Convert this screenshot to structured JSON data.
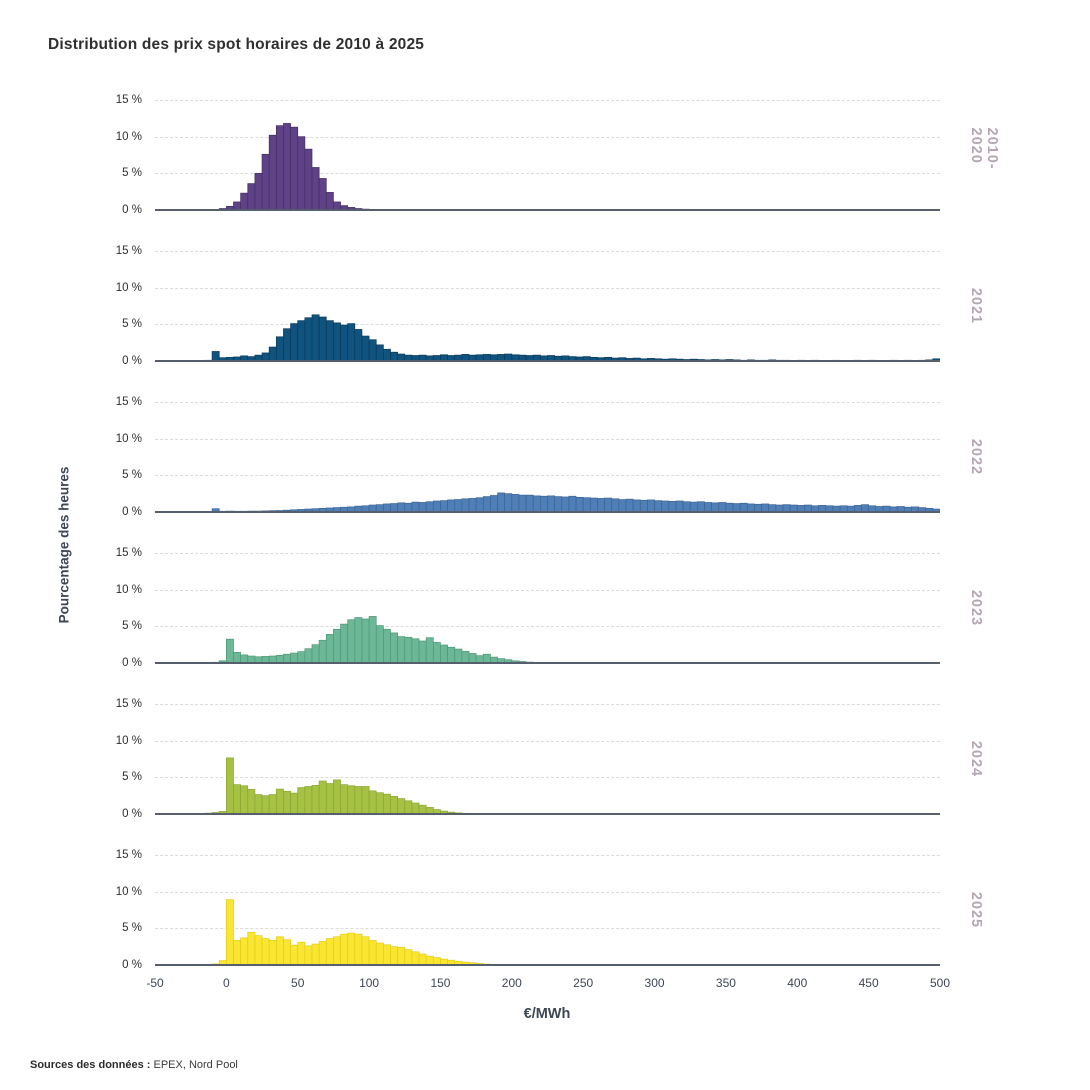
{
  "title": "Distribution des prix spot horaires de 2010 à 2025",
  "y_axis": {
    "title": "Pourcentage des heures",
    "tick_values": [
      15,
      10,
      5,
      0
    ],
    "tick_labels": [
      "15 %",
      "10 %",
      "5 %",
      "0 %"
    ]
  },
  "x_axis": {
    "title": "€/MWh",
    "tick_values": [
      -50,
      0,
      50,
      100,
      150,
      200,
      250,
      300,
      350,
      400,
      450,
      500
    ],
    "tick_labels": [
      "-50",
      "0",
      "50",
      "100",
      "150",
      "200",
      "250",
      "300",
      "350",
      "400",
      "450",
      "500"
    ]
  },
  "footer": {
    "label": "Sources des données :",
    "value": "EPEX, Nord Pool"
  },
  "chart_data": {
    "type": "bar",
    "subtype": "faceted-histogram",
    "title": "Distribution des prix spot horaires de 2010 à 2025",
    "xlabel": "€/MWh",
    "ylabel": "Pourcentage des heures",
    "x_range": [
      -50,
      500
    ],
    "y_range": [
      0,
      15
    ],
    "grid": "dashed-horizontal",
    "legend_position": "right-rotated-facet-labels",
    "year_label_color": "#b4a6b2",
    "bin_width": 5,
    "panels": [
      {
        "label": "2010-2020",
        "color": "#5e4187",
        "border": "#44305f",
        "bins_start": -10,
        "values": [
          0.05,
          0.2,
          0.5,
          1.1,
          2.3,
          3.6,
          5.0,
          7.6,
          10.2,
          11.5,
          11.8,
          11.3,
          10.0,
          8.3,
          5.8,
          4.3,
          2.4,
          1.1,
          0.6,
          0.35,
          0.2,
          0.12,
          0.08,
          0.05,
          0.04
        ]
      },
      {
        "label": "2021",
        "color": "#10537f",
        "border": "#0b3a59",
        "bins_start": -15,
        "values": [
          0.1,
          1.3,
          0.45,
          0.5,
          0.55,
          0.7,
          0.6,
          0.8,
          1.1,
          1.9,
          3.3,
          4.4,
          5.1,
          5.5,
          5.9,
          6.3,
          6.0,
          5.5,
          5.2,
          4.9,
          5.1,
          4.3,
          3.4,
          2.9,
          2.2,
          1.6,
          1.2,
          0.95,
          0.8,
          0.75,
          0.8,
          0.7,
          0.75,
          0.85,
          0.75,
          0.8,
          0.9,
          0.8,
          0.85,
          0.9,
          0.85,
          0.9,
          0.95,
          0.85,
          0.8,
          0.75,
          0.8,
          0.7,
          0.75,
          0.65,
          0.7,
          0.6,
          0.55,
          0.6,
          0.5,
          0.45,
          0.5,
          0.4,
          0.45,
          0.35,
          0.4,
          0.3,
          0.35,
          0.3,
          0.25,
          0.3,
          0.25,
          0.2,
          0.25,
          0.2,
          0.15,
          0.2,
          0.15,
          0.2,
          0.15,
          0.1,
          0.15,
          0.1,
          0.1,
          0.15,
          0.1,
          0.1,
          0.05,
          0.1,
          0.05,
          0.1,
          0.05,
          0.05,
          0.1,
          0.05,
          0.05,
          0.1,
          0.05,
          0.1,
          0.05,
          0.05,
          0.1,
          0.05,
          0.1,
          0.05,
          0.1,
          0.15,
          0.3
        ]
      },
      {
        "label": "2022",
        "color": "#4f7fb6",
        "border": "#3b6494",
        "bins_start": -15,
        "values": [
          0.08,
          0.45,
          0.1,
          0.12,
          0.1,
          0.1,
          0.12,
          0.12,
          0.15,
          0.18,
          0.2,
          0.25,
          0.3,
          0.35,
          0.4,
          0.45,
          0.5,
          0.55,
          0.6,
          0.65,
          0.7,
          0.8,
          0.85,
          0.95,
          1.0,
          1.1,
          1.15,
          1.25,
          1.2,
          1.35,
          1.3,
          1.4,
          1.5,
          1.55,
          1.65,
          1.7,
          1.8,
          1.85,
          1.95,
          2.1,
          2.25,
          2.6,
          2.5,
          2.4,
          2.3,
          2.3,
          2.2,
          2.15,
          2.2,
          2.1,
          2.05,
          2.15,
          2.0,
          1.95,
          1.9,
          1.85,
          1.9,
          1.8,
          1.7,
          1.75,
          1.65,
          1.6,
          1.65,
          1.55,
          1.5,
          1.45,
          1.5,
          1.4,
          1.35,
          1.4,
          1.3,
          1.25,
          1.3,
          1.2,
          1.15,
          1.2,
          1.1,
          1.05,
          1.1,
          1.0,
          0.95,
          1.0,
          0.95,
          0.9,
          0.95,
          0.85,
          0.9,
          0.85,
          0.8,
          0.85,
          0.8,
          0.9,
          1.0,
          0.85,
          0.75,
          0.8,
          0.7,
          0.75,
          0.65,
          0.7,
          0.6,
          0.5,
          0.4
        ]
      },
      {
        "label": "2023",
        "color": "#6cb795",
        "border": "#4e9878",
        "bins_start": -10,
        "values": [
          0.1,
          0.3,
          3.25,
          1.45,
          1.1,
          0.95,
          0.85,
          0.9,
          0.95,
          1.05,
          1.2,
          1.35,
          1.55,
          1.95,
          2.5,
          3.1,
          3.9,
          4.6,
          5.3,
          5.9,
          6.2,
          6.0,
          6.35,
          5.1,
          4.6,
          4.1,
          3.6,
          3.5,
          3.3,
          3.0,
          3.45,
          2.8,
          2.45,
          2.15,
          1.9,
          1.6,
          1.3,
          1.0,
          1.2,
          0.8,
          0.6,
          0.45,
          0.3,
          0.2,
          0.12,
          0.08,
          0.05
        ]
      },
      {
        "label": "2024",
        "color": "#a6c244",
        "border": "#8ba531",
        "bins_start": -20,
        "values": [
          0.08,
          0.12,
          0.2,
          0.35,
          7.65,
          4.0,
          3.85,
          3.35,
          2.65,
          2.5,
          2.65,
          3.4,
          3.1,
          2.85,
          3.6,
          3.75,
          3.9,
          4.5,
          4.15,
          4.65,
          4.0,
          3.85,
          3.75,
          3.75,
          3.15,
          2.9,
          2.7,
          2.4,
          2.1,
          1.8,
          1.5,
          1.2,
          0.9,
          0.6,
          0.4,
          0.25,
          0.15,
          0.1
        ]
      },
      {
        "label": "2025",
        "color": "#fae632",
        "border": "#e2cc15",
        "bins_start": -10,
        "values": [
          0.15,
          0.6,
          8.9,
          3.35,
          3.7,
          4.45,
          4.0,
          3.6,
          3.35,
          3.85,
          3.45,
          2.7,
          3.1,
          2.6,
          2.85,
          3.2,
          3.6,
          3.85,
          4.2,
          4.35,
          4.2,
          3.85,
          3.35,
          3.0,
          2.75,
          2.5,
          2.4,
          2.1,
          1.8,
          1.5,
          1.2,
          1.0,
          0.8,
          0.65,
          0.5,
          0.4,
          0.3,
          0.2,
          0.12
        ]
      }
    ]
  }
}
